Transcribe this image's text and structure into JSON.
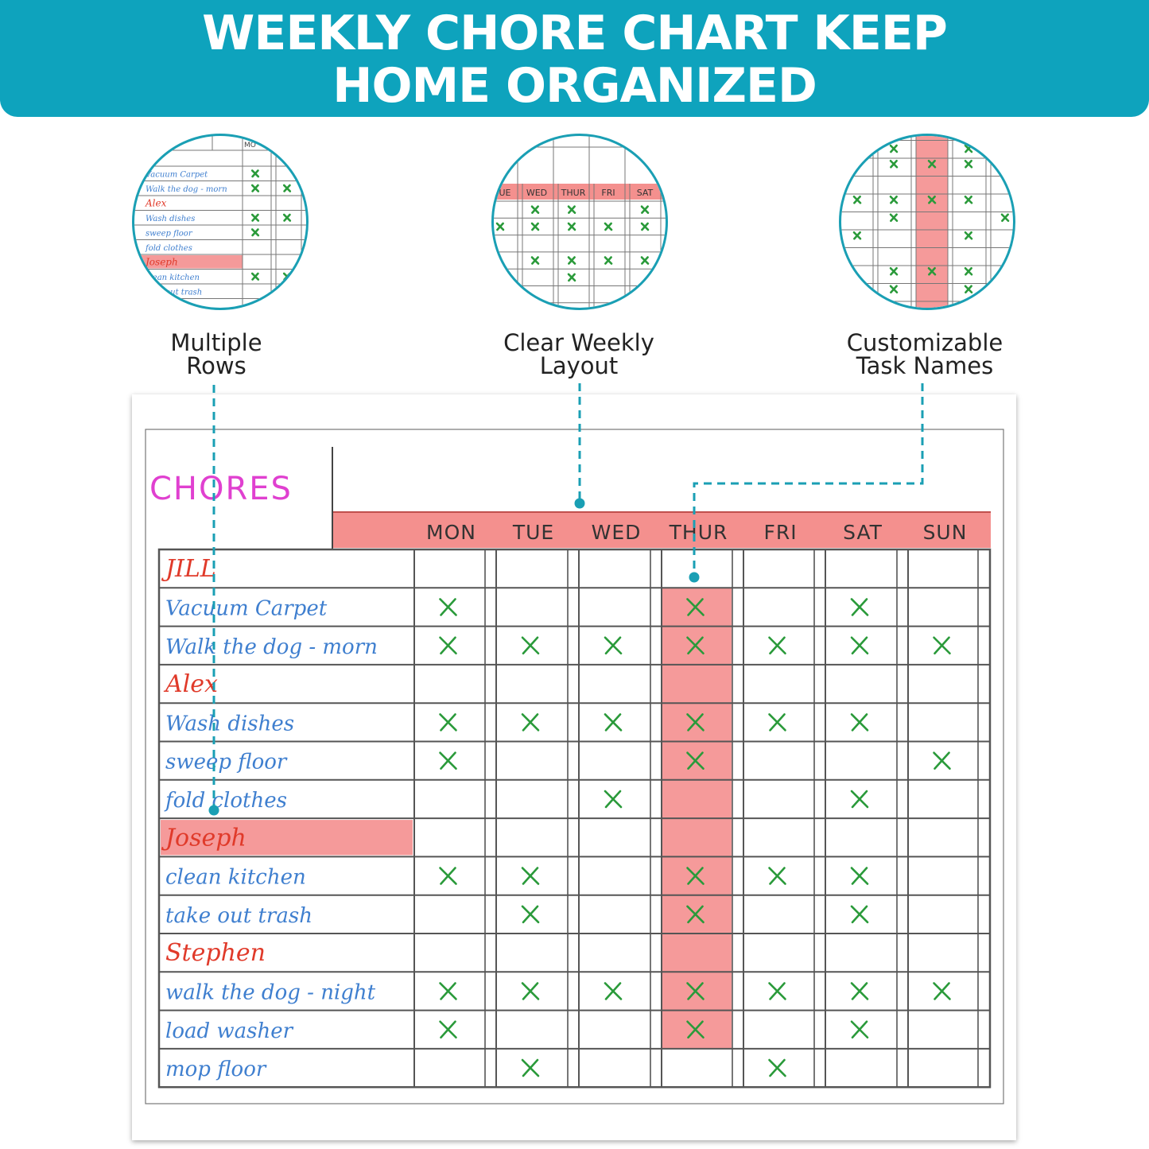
{
  "banner": {
    "line1": "WEEKLY CHORE CHART KEEP",
    "line2": "HOME ORGANIZED",
    "color": "#0ea3bd"
  },
  "features": [
    {
      "line1": "Multiple",
      "line2": "Rows",
      "icon": "magnifier-rows-icon"
    },
    {
      "line1": "Clear Weekly",
      "line2": "Layout",
      "icon": "magnifier-days-icon"
    },
    {
      "line1": "Customizable",
      "line2": "Task Names",
      "icon": "magnifier-column-icon"
    }
  ],
  "chart": {
    "title": "CHORES",
    "days": [
      "MON",
      "TUE",
      "WED",
      "THUR",
      "FRI",
      "SAT",
      "SUN"
    ],
    "highlight_day": "THUR",
    "highlight_person": "Joseph",
    "rows": [
      {
        "kind": "person",
        "text": "JILL",
        "marks": []
      },
      {
        "kind": "task",
        "text": "Vacuum Carpet",
        "marks": [
          "MON",
          "THUR",
          "SAT"
        ]
      },
      {
        "kind": "task",
        "text": "Walk the dog - morn",
        "marks": [
          "MON",
          "TUE",
          "WED",
          "THUR",
          "FRI",
          "SAT",
          "SUN"
        ]
      },
      {
        "kind": "person",
        "text": "Alex",
        "marks": []
      },
      {
        "kind": "task",
        "text": "Wash dishes",
        "marks": [
          "MON",
          "TUE",
          "WED",
          "THUR",
          "FRI",
          "SAT"
        ]
      },
      {
        "kind": "task",
        "text": "sweep floor",
        "marks": [
          "MON",
          "THUR",
          "SUN"
        ]
      },
      {
        "kind": "task",
        "text": "fold clothes",
        "marks": [
          "WED",
          "SAT"
        ]
      },
      {
        "kind": "person",
        "text": "Joseph",
        "marks": []
      },
      {
        "kind": "task",
        "text": "clean kitchen",
        "marks": [
          "MON",
          "TUE",
          "THUR",
          "FRI",
          "SAT"
        ]
      },
      {
        "kind": "task",
        "text": "take out trash",
        "marks": [
          "TUE",
          "THUR",
          "SAT"
        ]
      },
      {
        "kind": "person",
        "text": "Stephen",
        "marks": []
      },
      {
        "kind": "task",
        "text": "walk the dog - night",
        "marks": [
          "MON",
          "TUE",
          "WED",
          "THUR",
          "FRI",
          "SAT",
          "SUN"
        ]
      },
      {
        "kind": "task",
        "text": "load washer",
        "marks": [
          "MON",
          "THUR",
          "SAT"
        ]
      },
      {
        "kind": "task",
        "text": "mop floor",
        "marks": [
          "TUE",
          "FRI"
        ]
      }
    ],
    "mark_symbol": "X",
    "colors": {
      "title": "#e040d0",
      "header_band": "#f4908e",
      "highlight": "#f59a9a",
      "person": "#e03a2a",
      "task": "#3f7fcf",
      "mark": "#2a9a3a",
      "grid": "#555555",
      "leader": "#1a9fb4"
    }
  }
}
